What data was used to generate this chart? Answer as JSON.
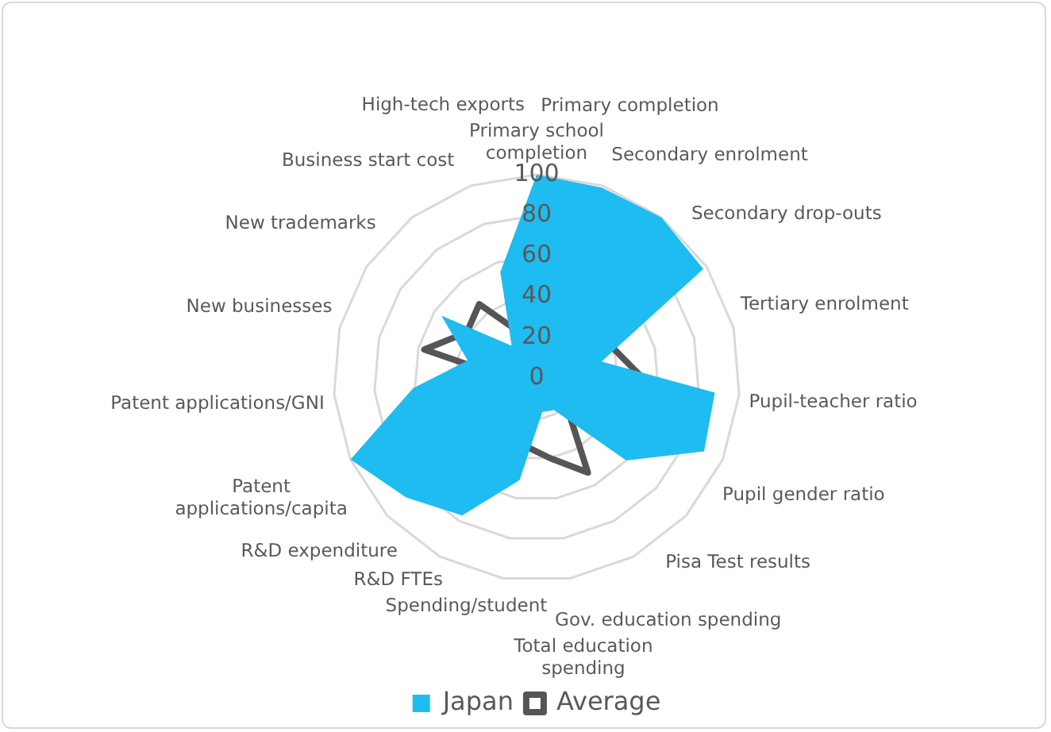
{
  "chart_data": {
    "type": "radar",
    "categories": [
      "Primary school completion",
      "Primary completion",
      "Secondary enrolment",
      "Secondary drop-outs",
      "Tertiary enrolment",
      "Pupil-teacher ratio",
      "Pupil gender ratio",
      "Pisa Test results",
      "Gov. education spending",
      "Total education spending",
      "Spending/student",
      "R&D FTEs",
      "R&D expenditure",
      "Patent applications/capita",
      "Patent applications/GNI",
      "New businesses",
      "New trademarks",
      "Business start cost",
      "High-tech exports"
    ],
    "series": [
      {
        "name": "Japan",
        "color": "#1ebcf0",
        "values": [
          100,
          99,
          100,
          98,
          33,
          88,
          90,
          60,
          18,
          17,
          51,
          77,
          87,
          100,
          61,
          35,
          56,
          20,
          55
        ]
      },
      {
        "name": "Average",
        "color": "#555555",
        "values": [
          49,
          68,
          68,
          38,
          43,
          57,
          80,
          20,
          53,
          40,
          34,
          30,
          21,
          22,
          12,
          57,
          41,
          46,
          23
        ]
      }
    ],
    "ylim": [
      0,
      100
    ],
    "yticks": [
      0,
      20,
      40,
      60,
      80,
      100
    ],
    "grid": true,
    "legend": "bottom",
    "marker": "none"
  }
}
